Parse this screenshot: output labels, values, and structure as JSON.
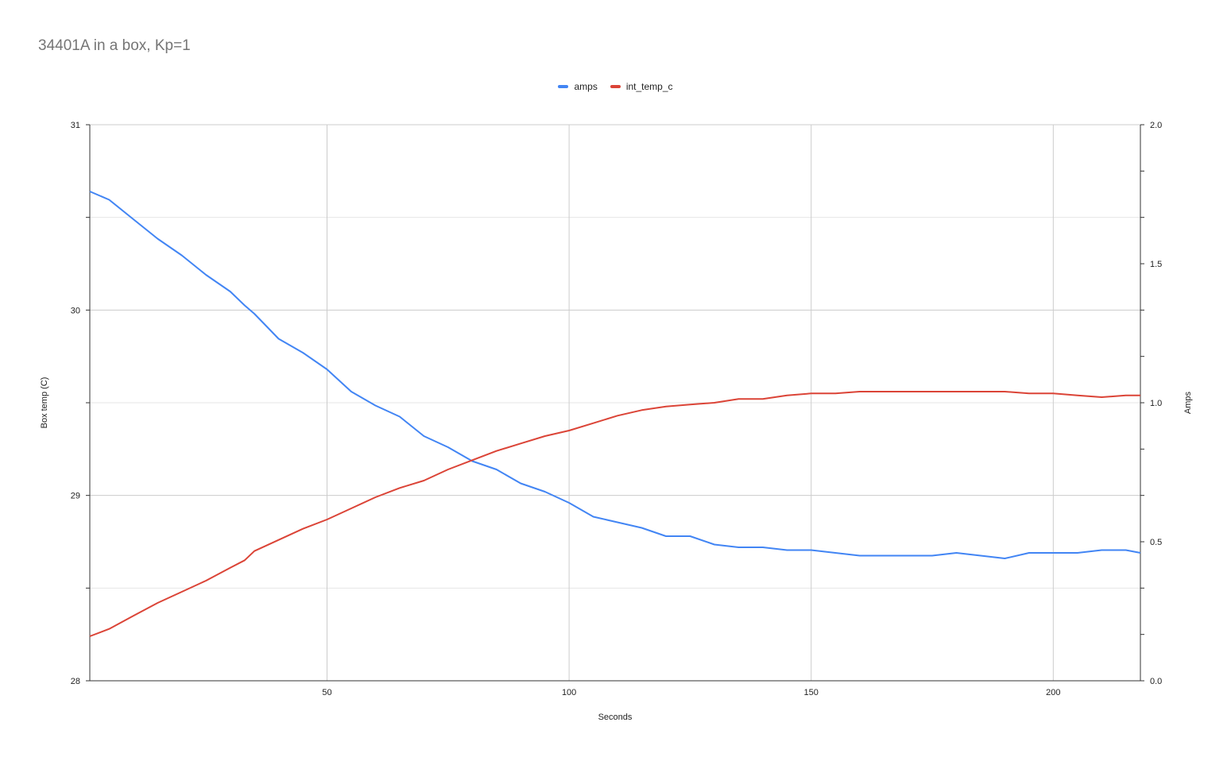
{
  "title": "34401A in a box, Kp=1",
  "chart_data": {
    "type": "line",
    "xlabel": "Seconds",
    "ylabel_left": "Box temp (C)",
    "ylabel_right": "Amps",
    "xlim": [
      1,
      218
    ],
    "ylim_left": [
      28,
      31
    ],
    "ylim_right": [
      0,
      2
    ],
    "x_ticks": [
      "50",
      "100",
      "150",
      "200"
    ],
    "y_ticks_left": [
      "28",
      "29",
      "30",
      "31"
    ],
    "y_ticks_right": [
      "0.0",
      "0.5",
      "1.0",
      "1.5",
      "2.0"
    ],
    "grid": true,
    "legend_position": "top",
    "series": [
      {
        "name": "amps",
        "axis": "right",
        "color": "#4285f4",
        "x": [
          1,
          5,
          10,
          15,
          20,
          25,
          30,
          33,
          35,
          40,
          45,
          50,
          55,
          60,
          65,
          70,
          75,
          80,
          85,
          90,
          95,
          100,
          105,
          110,
          115,
          120,
          125,
          130,
          135,
          140,
          145,
          150,
          155,
          160,
          165,
          170,
          175,
          180,
          185,
          190,
          195,
          200,
          205,
          210,
          215,
          218
        ],
        "y": [
          1.76,
          1.73,
          1.66,
          1.59,
          1.53,
          1.46,
          1.4,
          1.35,
          1.32,
          1.23,
          1.18,
          1.12,
          1.04,
          0.99,
          0.95,
          0.88,
          0.84,
          0.79,
          0.76,
          0.71,
          0.68,
          0.64,
          0.59,
          0.57,
          0.55,
          0.52,
          0.52,
          0.49,
          0.48,
          0.48,
          0.47,
          0.47,
          0.46,
          0.45,
          0.45,
          0.45,
          0.45,
          0.46,
          0.45,
          0.44,
          0.46,
          0.46,
          0.46,
          0.47,
          0.47,
          0.46
        ]
      },
      {
        "name": "int_temp_c",
        "axis": "left",
        "color": "#db4437",
        "x": [
          1,
          5,
          10,
          15,
          20,
          25,
          30,
          33,
          35,
          40,
          45,
          50,
          55,
          60,
          65,
          70,
          75,
          80,
          85,
          90,
          95,
          100,
          105,
          110,
          115,
          120,
          125,
          130,
          135,
          140,
          145,
          150,
          155,
          160,
          165,
          170,
          175,
          180,
          185,
          190,
          195,
          200,
          205,
          210,
          215,
          218
        ],
        "y": [
          28.24,
          28.28,
          28.35,
          28.42,
          28.48,
          28.54,
          28.61,
          28.65,
          28.7,
          28.76,
          28.82,
          28.87,
          28.93,
          28.99,
          29.04,
          29.08,
          29.14,
          29.19,
          29.24,
          29.28,
          29.32,
          29.35,
          29.39,
          29.43,
          29.46,
          29.48,
          29.49,
          29.5,
          29.52,
          29.52,
          29.54,
          29.55,
          29.55,
          29.56,
          29.56,
          29.56,
          29.56,
          29.56,
          29.56,
          29.56,
          29.55,
          29.55,
          29.54,
          29.53,
          29.54,
          29.54
        ]
      }
    ]
  }
}
